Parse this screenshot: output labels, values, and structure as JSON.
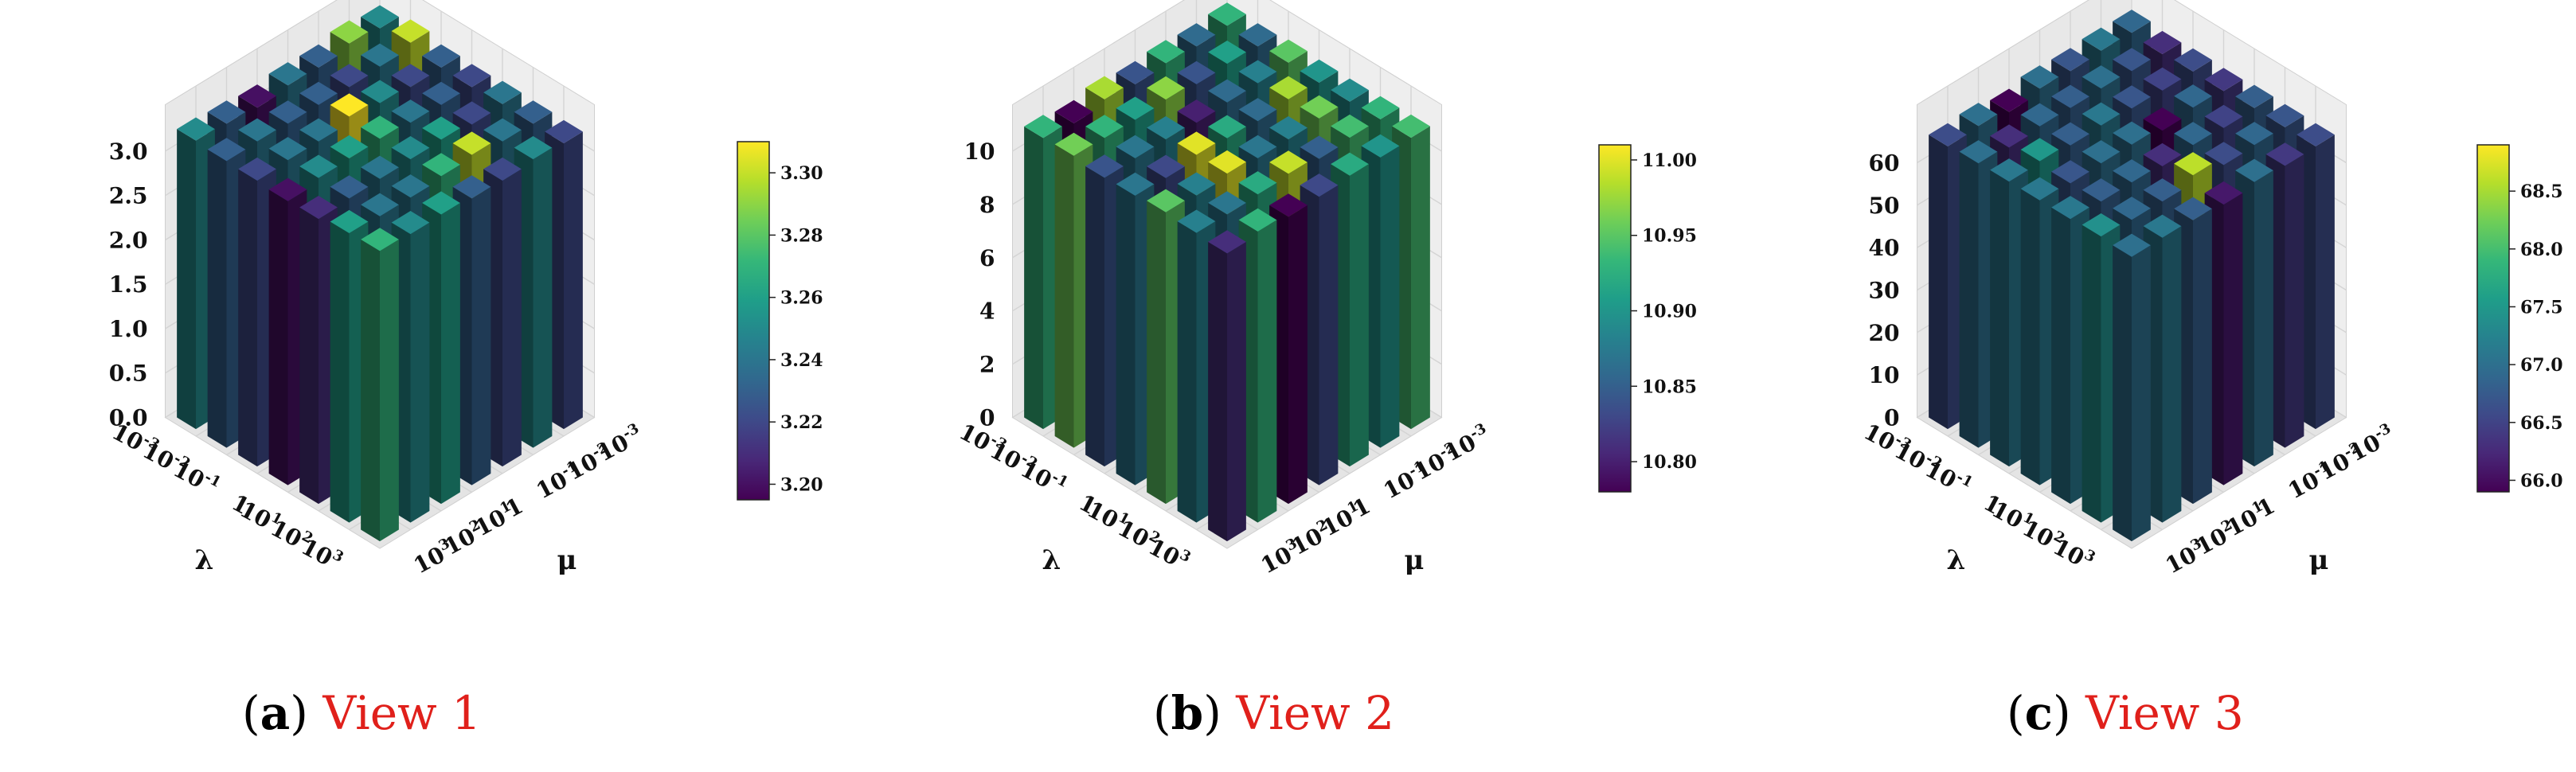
{
  "figure": {
    "colormap": "viridis",
    "panels": [
      {
        "id": "a",
        "caption_letter": "a",
        "caption_text": "View 1",
        "caption_color": "#e0201b",
        "z_ticks": [
          "0.0",
          "0.5",
          "1.0",
          "1.5",
          "2.0",
          "2.5",
          "3.0"
        ],
        "colorbar_ticks": [
          "3.20",
          "3.22",
          "3.24",
          "3.26",
          "3.28",
          "3.30"
        ]
      },
      {
        "id": "b",
        "caption_letter": "b",
        "caption_text": "View 2",
        "caption_color": "#e0201b",
        "z_ticks": [
          "0",
          "2",
          "4",
          "6",
          "8",
          "10"
        ],
        "colorbar_ticks": [
          "10.80",
          "10.85",
          "10.90",
          "10.95",
          "11.00"
        ]
      },
      {
        "id": "c",
        "caption_letter": "c",
        "caption_text": "View 3",
        "caption_color": "#e0201b",
        "z_ticks": [
          "0",
          "10",
          "20",
          "30",
          "40",
          "50",
          "60"
        ],
        "colorbar_ticks": [
          "66.0",
          "66.5",
          "67.0",
          "67.5",
          "68.0",
          "68.5"
        ]
      }
    ],
    "axis_tick_labels": {
      "lambda": [
        {
          "base": "10",
          "exp": "-3"
        },
        {
          "base": "10",
          "exp": "-2"
        },
        {
          "base": "10",
          "exp": "-1"
        },
        {
          "base": "1",
          "exp": ""
        },
        {
          "base": "10",
          "exp": "1"
        },
        {
          "base": "10",
          "exp": "2"
        },
        {
          "base": "10",
          "exp": "3"
        }
      ],
      "mu": [
        {
          "base": "10",
          "exp": "3"
        },
        {
          "base": "10",
          "exp": "2"
        },
        {
          "base": "10",
          "exp": "1"
        },
        {
          "base": "1",
          "exp": ""
        },
        {
          "base": "10",
          "exp": "-1"
        },
        {
          "base": "10",
          "exp": "-2"
        },
        {
          "base": "10",
          "exp": "-3"
        }
      ]
    },
    "lambda_label": "λ",
    "mu_label": "μ"
  },
  "chart_data": [
    {
      "type": "bar3d",
      "title": "View 1",
      "xlabel": "λ",
      "ylabel": "μ",
      "x_categories": [
        "10^-3",
        "10^-2",
        "10^-1",
        "1",
        "10^1",
        "10^2",
        "10^3"
      ],
      "y_categories": [
        "10^-3",
        "10^-2",
        "10^-1",
        "1",
        "10^1",
        "10^2",
        "10^3"
      ],
      "zlim": [
        0,
        3.3
      ],
      "color_range": [
        3.195,
        3.31
      ],
      "values": [
        [
          3.25,
          3.29,
          3.23,
          3.24,
          3.2,
          3.23,
          3.25
        ],
        [
          3.3,
          3.24,
          3.22,
          3.23,
          3.23,
          3.24,
          3.23
        ],
        [
          3.23,
          3.22,
          3.25,
          3.31,
          3.24,
          3.24,
          3.22
        ],
        [
          3.22,
          3.23,
          3.24,
          3.27,
          3.26,
          3.25,
          3.2
        ],
        [
          3.24,
          3.22,
          3.26,
          3.25,
          3.24,
          3.23,
          3.21
        ],
        [
          3.23,
          3.24,
          3.3,
          3.27,
          3.24,
          3.24,
          3.26
        ],
        [
          3.22,
          3.25,
          3.22,
          3.23,
          3.26,
          3.25,
          3.27
        ]
      ]
    },
    {
      "type": "bar3d",
      "title": "View 2",
      "xlabel": "λ",
      "ylabel": "μ",
      "x_categories": [
        "10^-3",
        "10^-2",
        "10^-1",
        "1",
        "10^1",
        "10^2",
        "10^3"
      ],
      "y_categories": [
        "10^-3",
        "10^-2",
        "10^-1",
        "1",
        "10^1",
        "10^2",
        "10^3"
      ],
      "zlim": [
        0,
        11
      ],
      "color_range": [
        10.78,
        11.01
      ],
      "values": [
        [
          10.93,
          10.86,
          10.93,
          10.84,
          10.98,
          10.78,
          10.93
        ],
        [
          10.86,
          10.91,
          10.84,
          10.97,
          10.91,
          10.93,
          10.96
        ],
        [
          10.95,
          10.88,
          10.86,
          10.8,
          10.88,
          10.87,
          10.84
        ],
        [
          10.9,
          10.98,
          10.86,
          10.92,
          11.0,
          10.83,
          10.87
        ],
        [
          10.89,
          10.96,
          10.88,
          10.87,
          11.0,
          10.88,
          10.95
        ],
        [
          10.93,
          10.94,
          10.85,
          10.99,
          10.92,
          10.87,
          10.88
        ],
        [
          10.94,
          10.9,
          10.92,
          10.83,
          10.78,
          10.93,
          10.81
        ]
      ]
    },
    {
      "type": "bar3d",
      "title": "View 3",
      "xlabel": "λ",
      "ylabel": "μ",
      "x_categories": [
        "10^-3",
        "10^-2",
        "10^-1",
        "1",
        "10^1",
        "10^2",
        "10^3"
      ],
      "y_categories": [
        "10^-3",
        "10^-2",
        "10^-1",
        "1",
        "10^1",
        "10^2",
        "10^3"
      ],
      "zlim": [
        0,
        69
      ],
      "color_range": [
        65.9,
        68.9
      ],
      "values": [
        [
          66.9,
          67.1,
          66.7,
          67.0,
          65.9,
          67.0,
          66.6
        ],
        [
          66.3,
          66.7,
          67.0,
          66.8,
          66.9,
          66.3,
          67.0
        ],
        [
          66.6,
          66.5,
          66.7,
          67.1,
          66.8,
          67.5,
          67.1
        ],
        [
          66.4,
          66.9,
          65.9,
          67.0,
          67.0,
          66.7,
          67.1
        ],
        [
          66.8,
          66.5,
          66.9,
          66.3,
          66.9,
          66.8,
          67.1
        ],
        [
          66.7,
          66.9,
          66.6,
          68.6,
          66.8,
          66.9,
          67.4
        ],
        [
          66.6,
          66.4,
          67.0,
          66.1,
          66.8,
          67.1,
          67.0
        ]
      ]
    }
  ]
}
